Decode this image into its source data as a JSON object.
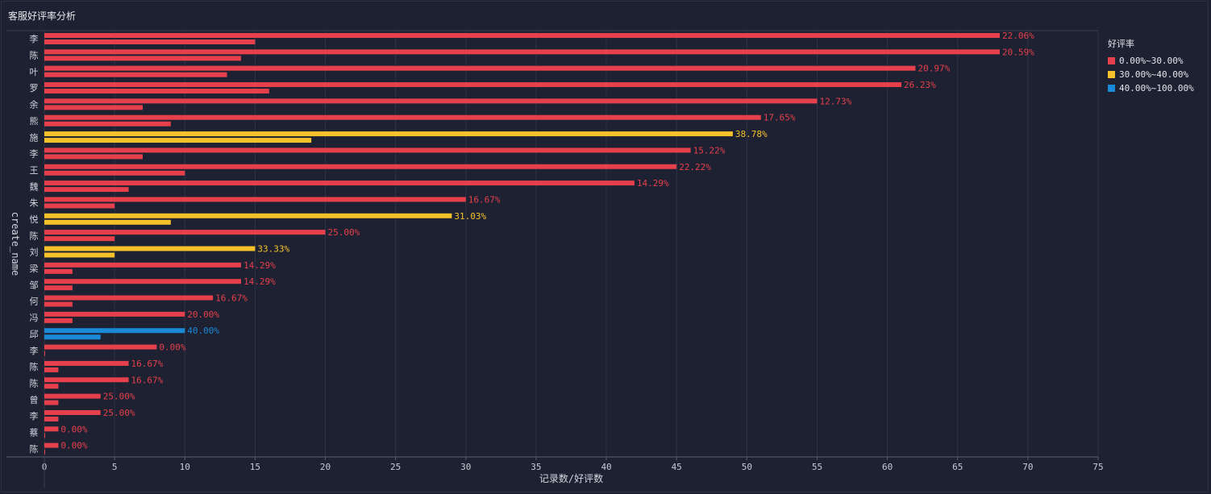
{
  "title": "客服好评率分析",
  "legend": {
    "title": "好评率",
    "items": [
      {
        "label": "0.00%~30.00%",
        "color": "#e5404b"
      },
      {
        "label": "30.00%~40.00%",
        "color": "#f5c22c"
      },
      {
        "label": "40.00%~100.00%",
        "color": "#1a8ad8"
      }
    ]
  },
  "chart_data": {
    "type": "bar",
    "orientation": "horizontal",
    "xlabel": "记录数/好评数",
    "ylabel": "create_name",
    "xlim": [
      0,
      75
    ],
    "xticks": [
      0,
      5,
      10,
      15,
      20,
      25,
      30,
      35,
      40,
      45,
      50,
      55,
      60,
      65,
      70,
      75
    ],
    "grid": true,
    "legend_position": "right",
    "categories": [
      "李",
      "陈",
      "叶",
      "罗",
      "余",
      "熊",
      "施",
      "李",
      "王",
      "魏",
      "朱",
      "悦",
      "陈",
      "刘",
      "梁",
      "邹",
      "何",
      "冯",
      "邱",
      "李",
      "陈",
      "陈",
      "曾",
      "李",
      "蔡",
      "陈"
    ],
    "series": [
      {
        "name": "记录数",
        "values": [
          68,
          68,
          62,
          61,
          55,
          51,
          49,
          46,
          45,
          42,
          30,
          29,
          20,
          15,
          14,
          14,
          12,
          10,
          10,
          8,
          6,
          6,
          4,
          4,
          1,
          1
        ]
      },
      {
        "name": "好评数",
        "values": [
          15,
          14,
          13,
          16,
          7,
          9,
          19,
          7,
          10,
          6,
          5,
          9,
          5,
          5,
          2,
          2,
          2,
          2,
          4,
          0,
          1,
          1,
          1,
          1,
          0,
          0
        ]
      }
    ],
    "rate_labels": [
      "22.06%",
      "20.59%",
      "20.97%",
      "26.23%",
      "12.73%",
      "17.65%",
      "38.78%",
      "15.22%",
      "22.22%",
      "14.29%",
      "16.67%",
      "31.03%",
      "25.00%",
      "33.33%",
      "14.29%",
      "14.29%",
      "16.67%",
      "20.00%",
      "40.00%",
      "0.00%",
      "16.67%",
      "16.67%",
      "25.00%",
      "25.00%",
      "0.00%",
      "0.00%"
    ],
    "rate_groups": [
      0,
      0,
      0,
      0,
      0,
      0,
      1,
      0,
      0,
      0,
      0,
      1,
      0,
      1,
      0,
      0,
      0,
      0,
      2,
      0,
      0,
      0,
      0,
      0,
      0,
      0
    ]
  }
}
